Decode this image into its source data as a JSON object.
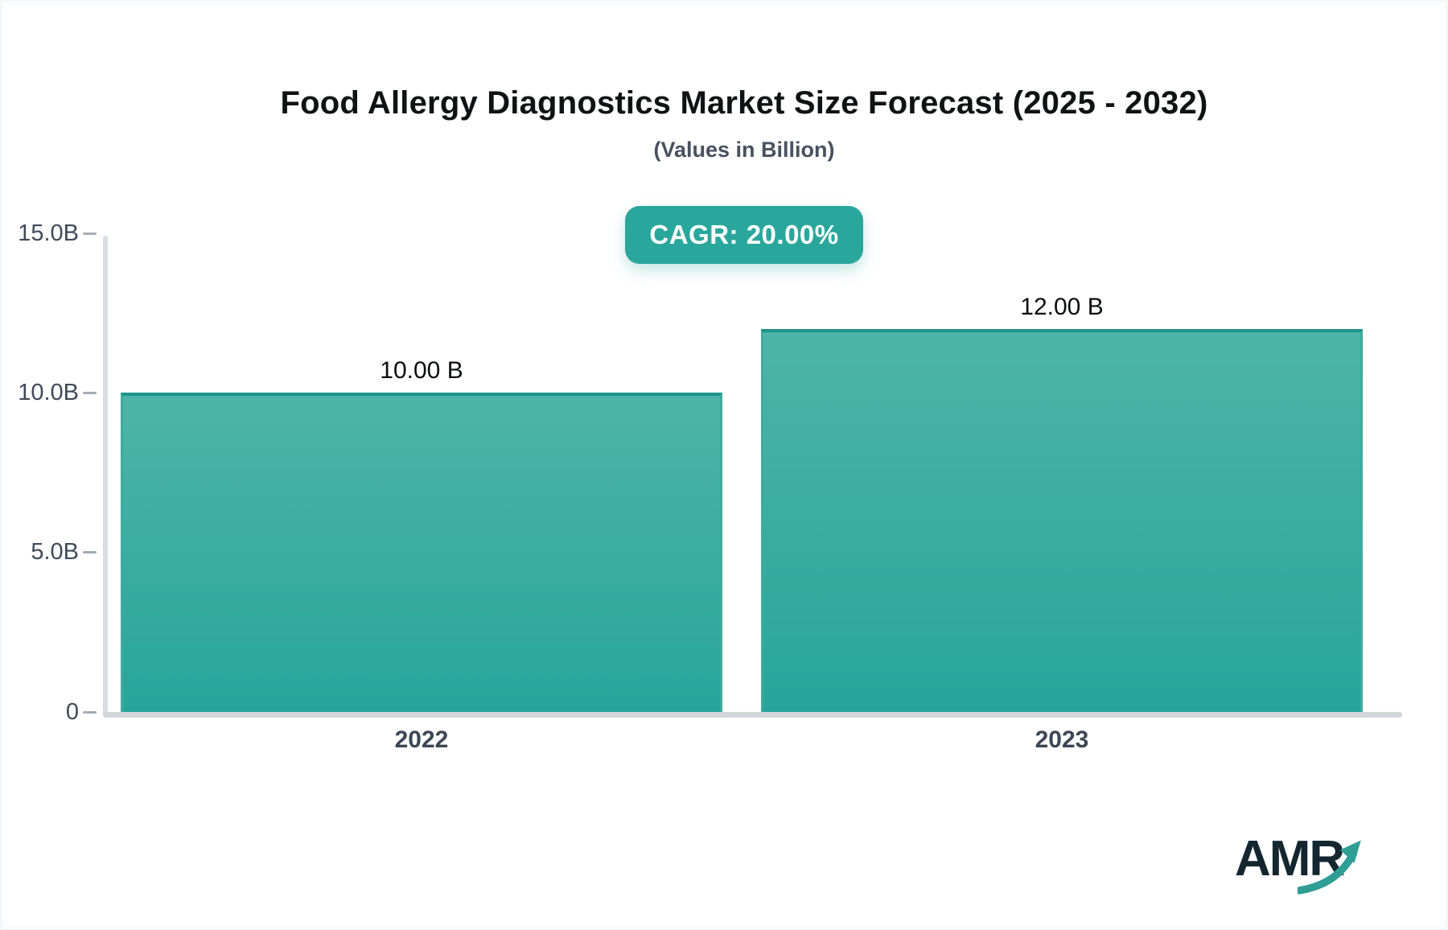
{
  "page": {
    "title": "Food Allergy Diagnostics Market Size Forecast (2025 - 2032)",
    "subtitle": "(Values in Billion)",
    "cagr_badge_label": "CAGR: 20.00%",
    "logo_text": "AMR"
  },
  "colors": {
    "accent_teal": "#2aa79c",
    "bar_gradient_top": "#4eb4a9",
    "bar_gradient_bottom": "#27a59a",
    "bar_border_top": "#1e948a",
    "axis_line": "#d7dade",
    "tick_dash": "#a5abb5",
    "label_slate": "#3f4a59",
    "value_label": "#0b0d0f",
    "logo_dark": "#142730",
    "logo_arrow_teal": "#2f9f96"
  },
  "chart_data": {
    "type": "bar",
    "title": "Food Allergy Diagnostics Market Size Forecast (2025 - 2032)",
    "subtitle": "(Values in Billion)",
    "cagr_percent": 20.0,
    "unit": "Billion",
    "categories": [
      "2022",
      "2023"
    ],
    "values": [
      10.0,
      12.0
    ],
    "bar_labels": [
      "10.00 B",
      "12.00 B"
    ],
    "ylim": [
      0,
      15
    ],
    "y_ticks": [
      {
        "value": 0,
        "label": "0"
      },
      {
        "value": 5,
        "label": "5.0B"
      },
      {
        "value": 10,
        "label": "10.0B"
      },
      {
        "value": 15,
        "label": "15.0B"
      }
    ],
    "grid": false,
    "legend": false,
    "bar_orientation": "vertical"
  }
}
